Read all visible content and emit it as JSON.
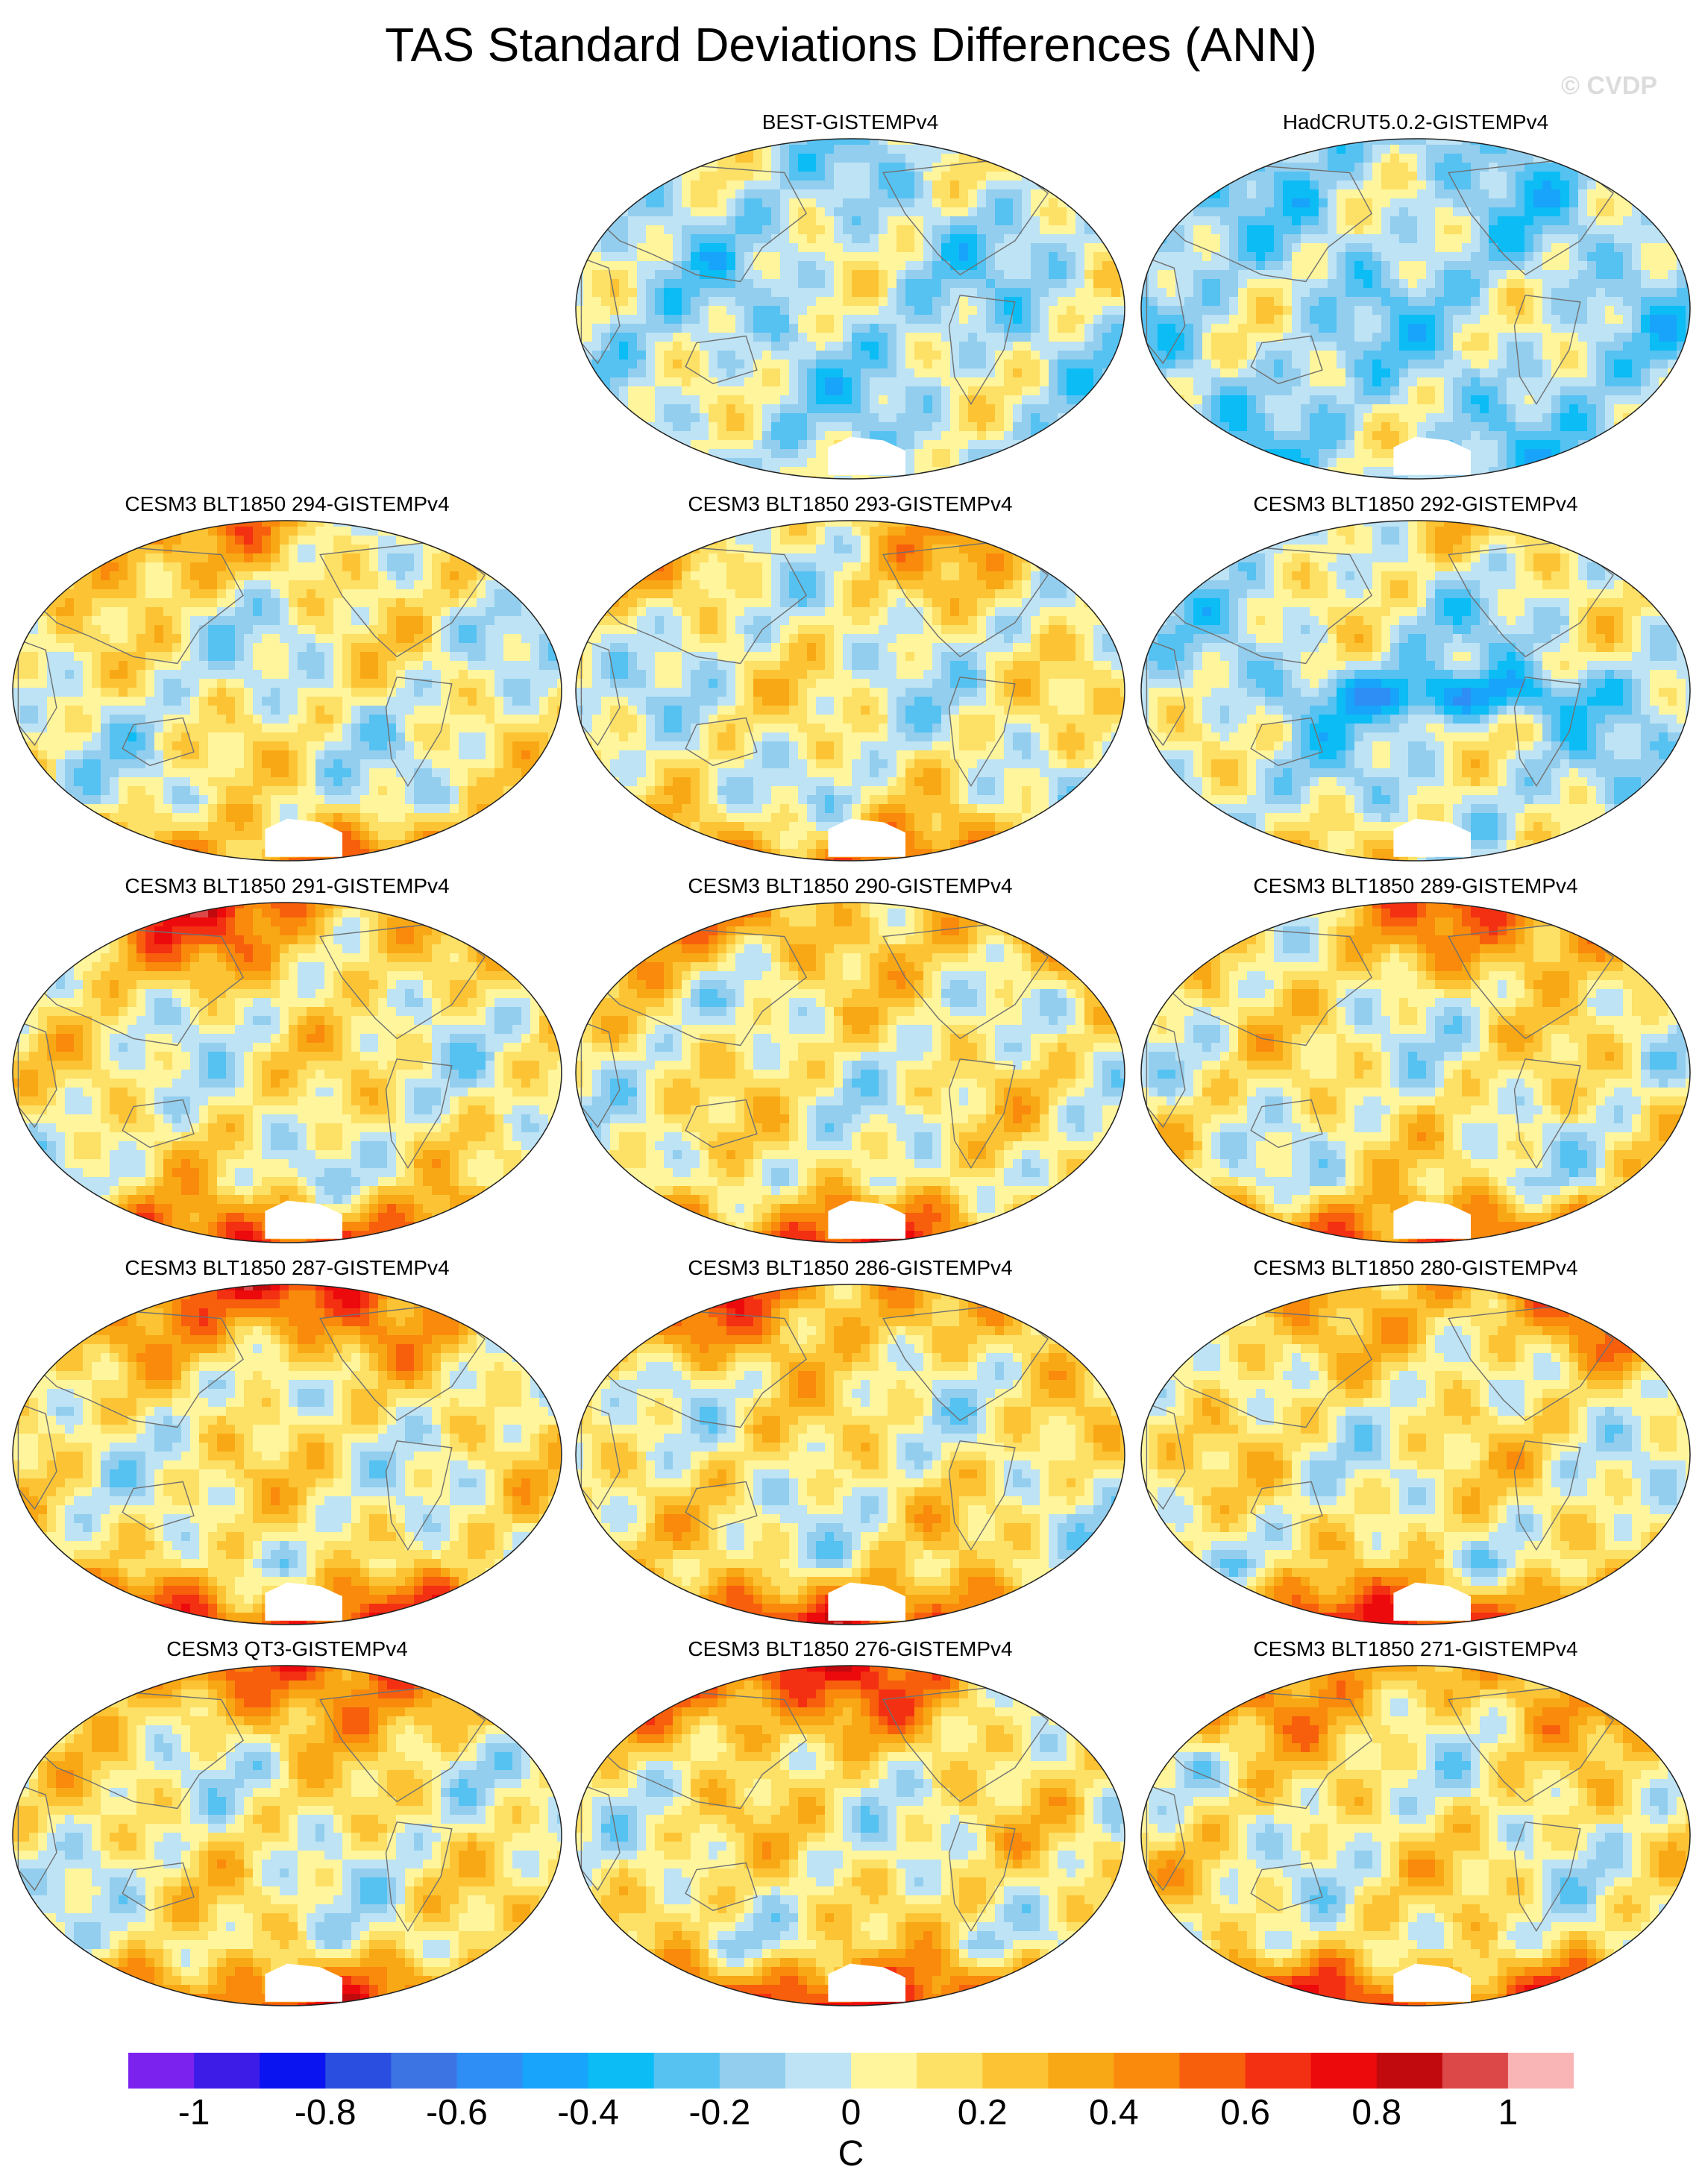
{
  "title": "TAS Standard Deviations Differences (ANN)",
  "watermark": "© CVDP",
  "colorbar": {
    "unit": "C",
    "tick_labels": [
      "-1",
      "-0.8",
      "-0.6",
      "-0.4",
      "-0.2",
      "0",
      "0.2",
      "0.4",
      "0.6",
      "0.8",
      "1"
    ],
    "colors": [
      "#7b22ef",
      "#3d1ce8",
      "#0a14f0",
      "#2a4fe0",
      "#3d74e4",
      "#2e8ef5",
      "#18a4fa",
      "#0cbcf5",
      "#55c2f2",
      "#93ceee",
      "#bde3f5",
      "#fff59c",
      "#fde066",
      "#fcc435",
      "#f9a815",
      "#f98a0c",
      "#f75f0d",
      "#f43012",
      "#ec0a0c",
      "#c10a0d",
      "#dc4848",
      "#f9b5b5"
    ]
  },
  "panels": [
    {
      "label": "BEST-GISTEMPv4",
      "warmth": 0.05
    },
    {
      "label": "HadCRUT5.0.2-GISTEMPv4",
      "warmth": -0.05
    },
    {
      "label": "CESM3 BLT1850 294-GISTEMPv4",
      "warmth": 0.5
    },
    {
      "label": "CESM3 BLT1850 293-GISTEMPv4",
      "warmth": 0.5
    },
    {
      "label": "CESM3 BLT1850 292-GISTEMPv4",
      "warmth": 0.2
    },
    {
      "label": "CESM3 BLT1850 291-GISTEMPv4",
      "warmth": 0.65
    },
    {
      "label": "CESM3 BLT1850 290-GISTEMPv4",
      "warmth": 0.65
    },
    {
      "label": "CESM3 BLT1850 289-GISTEMPv4",
      "warmth": 0.65
    },
    {
      "label": "CESM3 BLT1850 287-GISTEMPv4",
      "warmth": 0.7
    },
    {
      "label": "CESM3 BLT1850 286-GISTEMPv4",
      "warmth": 0.7
    },
    {
      "label": "CESM3 BLT1850 280-GISTEMPv4",
      "warmth": 0.7
    },
    {
      "label": "CESM3 QT3-GISTEMPv4",
      "warmth": 0.65
    },
    {
      "label": "CESM3 BLT1850 276-GISTEMPv4",
      "warmth": 0.75
    },
    {
      "label": "CESM3 BLT1850 271-GISTEMPv4",
      "warmth": 0.7
    }
  ]
}
